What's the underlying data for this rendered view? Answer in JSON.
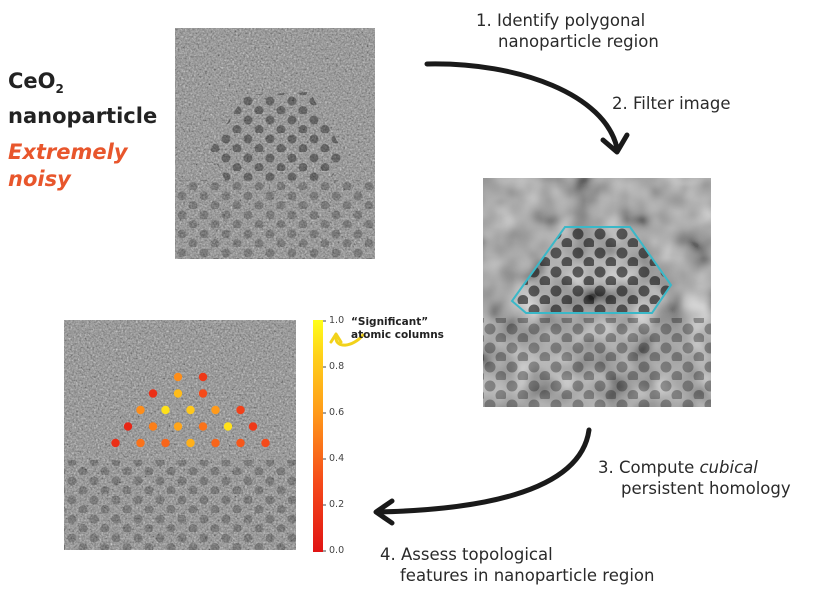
{
  "title": {
    "main": "CeO",
    "subscript": "2",
    "line2": "nanoparticle"
  },
  "emphasis": {
    "line1": "Extremely",
    "line2": "noisy"
  },
  "steps": {
    "s1_line1": "1. Identify polygonal",
    "s1_line2": "nanoparticle region",
    "s2": "2. Filter image",
    "s3_prefix": "3. Compute ",
    "s3_italic": "cubical",
    "s3_line2": "persistent homology",
    "s4_line1": "4. Assess topological",
    "s4_line2": "features in nanoparticle region"
  },
  "annotation": {
    "line1": "“Significant”",
    "line2": "atomic columns"
  },
  "colorbar": {
    "ticks": [
      "1.0",
      "0.8",
      "0.6",
      "0.4",
      "0.2",
      "0.0"
    ],
    "colors": [
      "#ffff1a",
      "#ffc21a",
      "#ff8a1a",
      "#f54a1a",
      "#e01414"
    ]
  },
  "colors": {
    "accent_orange": "#e8562c",
    "polygon": "#3ab8c8",
    "arrow": "#1a1a1a",
    "annotation": "#f2d21a"
  },
  "atomic_columns": [
    {
      "row": 0,
      "col": 2.0,
      "value": 0.55
    },
    {
      "row": 0,
      "col": 3.0,
      "value": 0.2
    },
    {
      "row": 1,
      "col": 1.0,
      "value": 0.15
    },
    {
      "row": 1,
      "col": 2.0,
      "value": 0.75
    },
    {
      "row": 1,
      "col": 3.0,
      "value": 0.3
    },
    {
      "row": 2,
      "col": 0.5,
      "value": 0.55
    },
    {
      "row": 2,
      "col": 1.5,
      "value": 0.9
    },
    {
      "row": 2,
      "col": 2.5,
      "value": 0.8
    },
    {
      "row": 2,
      "col": 3.5,
      "value": 0.6
    },
    {
      "row": 2,
      "col": 4.5,
      "value": 0.25
    },
    {
      "row": 3,
      "col": 0.0,
      "value": 0.1
    },
    {
      "row": 3,
      "col": 1.0,
      "value": 0.5
    },
    {
      "row": 3,
      "col": 2.0,
      "value": 0.65
    },
    {
      "row": 3,
      "col": 3.0,
      "value": 0.45
    },
    {
      "row": 3,
      "col": 4.0,
      "value": 0.9
    },
    {
      "row": 3,
      "col": 5.0,
      "value": 0.2
    },
    {
      "row": 4,
      "col": -0.5,
      "value": 0.15
    },
    {
      "row": 4,
      "col": 0.5,
      "value": 0.45
    },
    {
      "row": 4,
      "col": 1.5,
      "value": 0.4
    },
    {
      "row": 4,
      "col": 2.5,
      "value": 0.7
    },
    {
      "row": 4,
      "col": 3.5,
      "value": 0.4
    },
    {
      "row": 4,
      "col": 4.5,
      "value": 0.35
    },
    {
      "row": 4,
      "col": 5.5,
      "value": 0.3
    }
  ]
}
